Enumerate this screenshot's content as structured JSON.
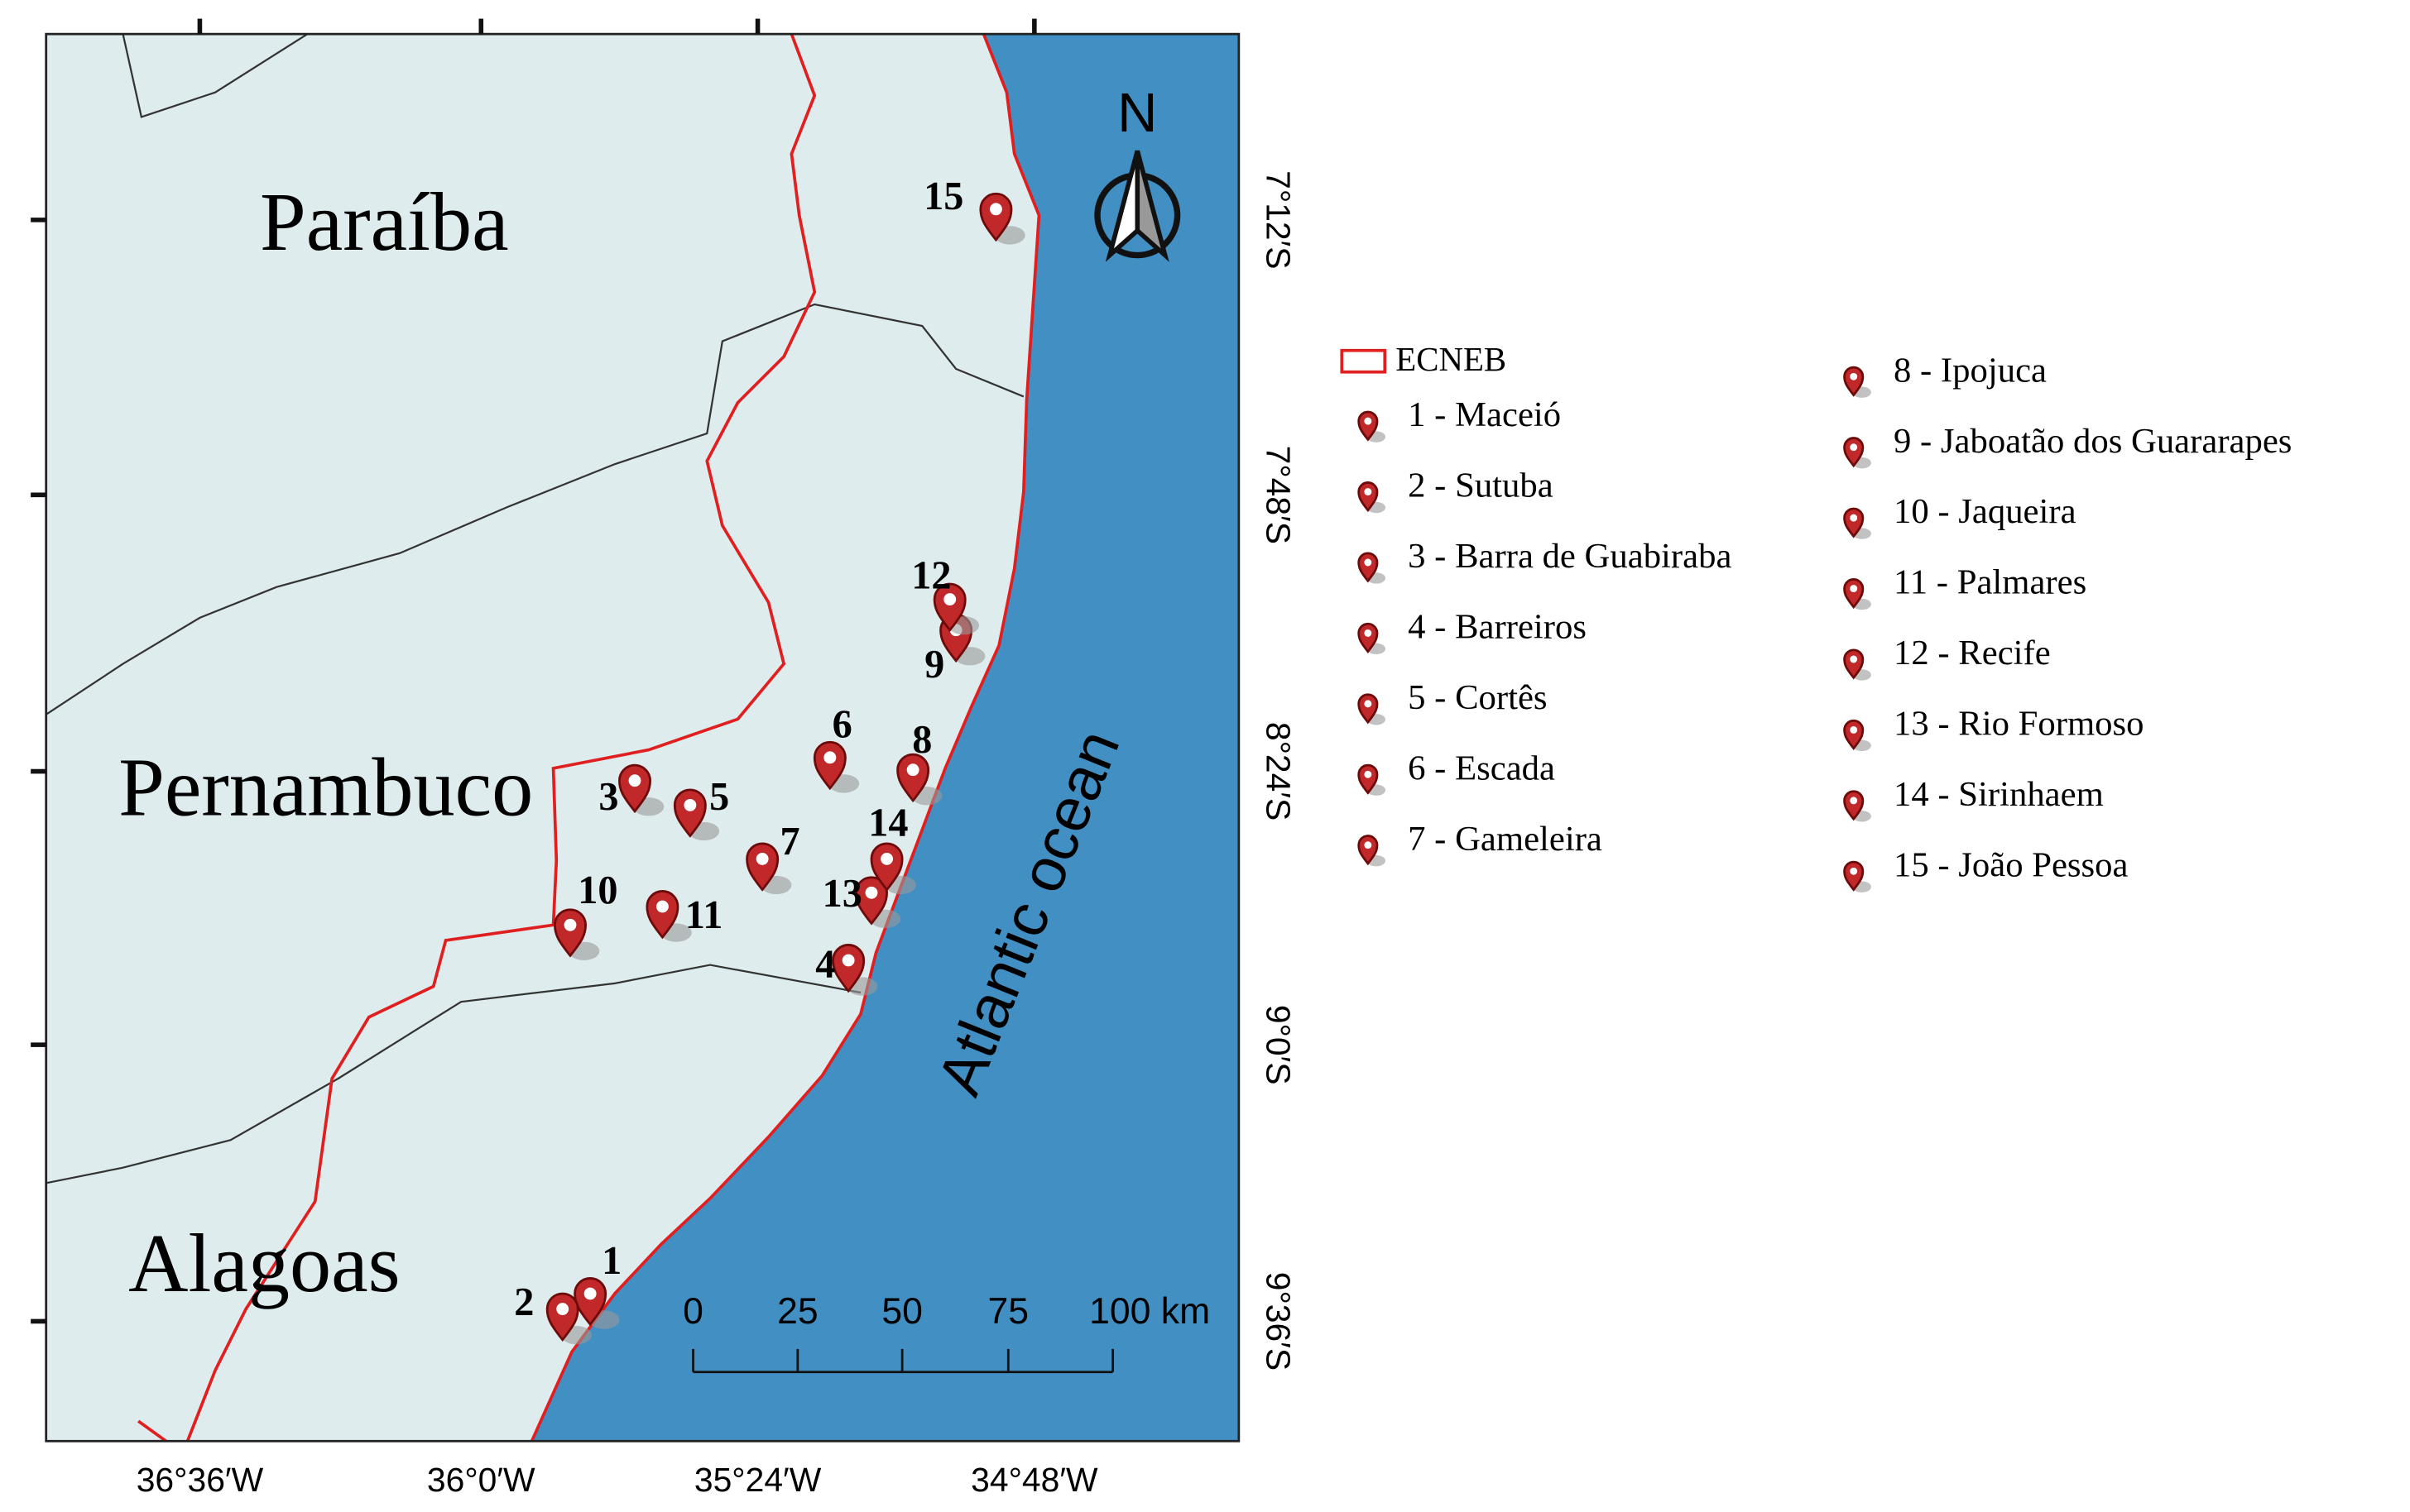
{
  "map": {
    "regions": [
      "Paraíba",
      "Pernambuco",
      "Alagoas"
    ],
    "ocean": "Atlantic ocean",
    "north": "N",
    "x_labels": [
      "36°36′W",
      "36°0′W",
      "35°24′W",
      "34°48′W"
    ],
    "y_labels": [
      "7°12′S",
      "7°48′S",
      "8°24′S",
      "9°0′S",
      "9°36′S"
    ],
    "scale_bar": [
      "0",
      "25",
      "50",
      "75",
      "100 km"
    ],
    "sites": [
      "1",
      "2",
      "3",
      "4",
      "5",
      "6",
      "7",
      "8",
      "9",
      "10",
      "11",
      "12",
      "13",
      "14",
      "15"
    ],
    "legend": {
      "boundary": "ECNEB",
      "entries": [
        "1 - Maceió",
        "2 - Sutuba",
        "3 - Barra de Guabiraba",
        "4 - Barreiros",
        "5 - Cortês",
        "6 - Escada",
        "7 - Gameleira",
        "8 - Ipojuca",
        "9 - Jaboatão dos Guararapes",
        "10 - Jaqueira",
        "11 - Palmares",
        "12 - Recife",
        "13 - Rio Formoso",
        "14 - Sirinhaem",
        "15 - João Pessoa"
      ]
    }
  }
}
